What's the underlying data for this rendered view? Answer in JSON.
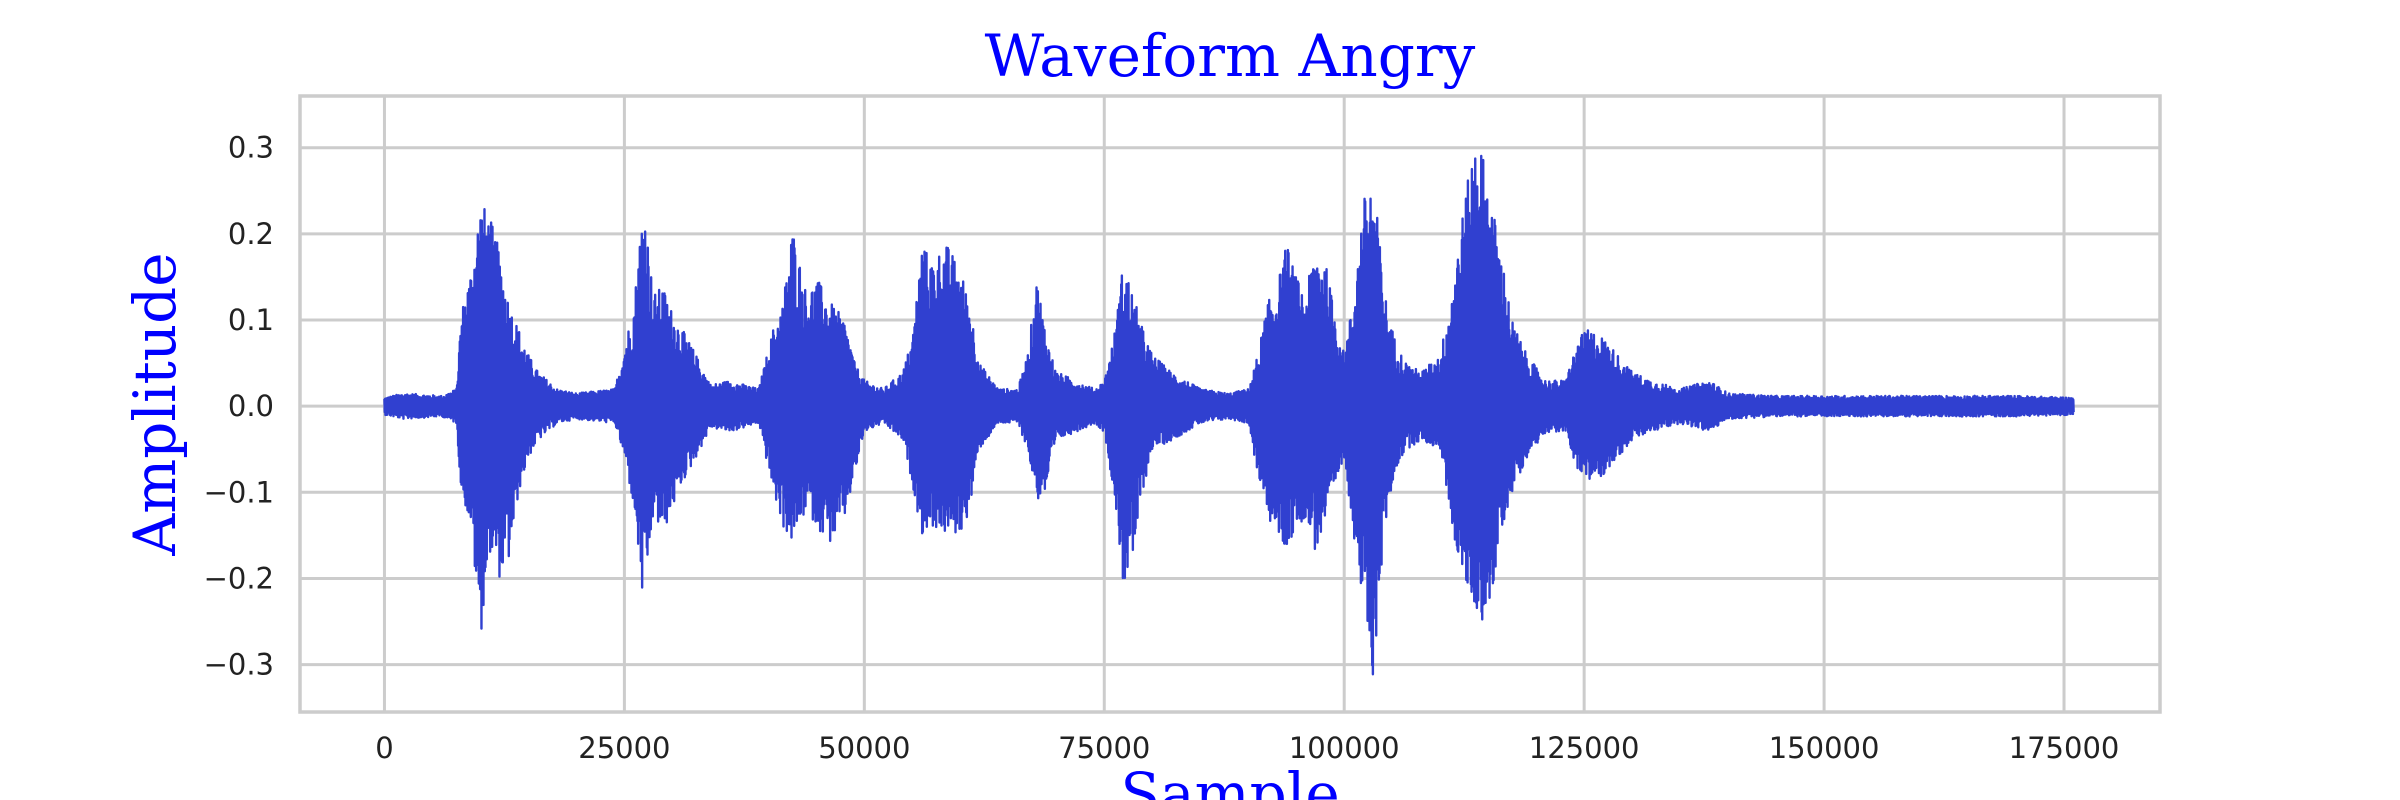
{
  "chart_data": {
    "type": "line",
    "title": "Waveform Angry",
    "xlabel": "Sample",
    "ylabel": "Amplitude",
    "xlim": [
      -8800,
      185000
    ],
    "ylim": [
      -0.355,
      0.36
    ],
    "xticks": [
      0,
      25000,
      50000,
      75000,
      100000,
      125000,
      150000,
      175000
    ],
    "xtick_labels": [
      "0",
      "25000",
      "50000",
      "75000",
      "100000",
      "125000",
      "150000",
      "175000"
    ],
    "yticks": [
      0.3,
      0.2,
      0.1,
      0.0,
      -0.1,
      -0.2,
      -0.3
    ],
    "ytick_labels": [
      "0.3",
      "0.2",
      "0.1",
      "0.0",
      "−0.1",
      "−0.2",
      "−0.3"
    ],
    "grid": true,
    "series_color": "#3040d0",
    "total_samples": 176000,
    "envelope": {
      "x": [
        0,
        2000,
        6000,
        7500,
        8000,
        9000,
        10000,
        11000,
        12000,
        13000,
        14000,
        15000,
        16000,
        18000,
        20000,
        24000,
        25000,
        26000,
        27000,
        28000,
        29000,
        30000,
        31000,
        32000,
        34000,
        36000,
        39000,
        40500,
        41500,
        42500,
        44000,
        45000,
        46500,
        48000,
        49000,
        50000,
        52000,
        54000,
        55000,
        56000,
        57000,
        58500,
        60000,
        61000,
        62000,
        64000,
        66000,
        67000,
        68000,
        69000,
        70000,
        72000,
        74000,
        75000,
        76000,
        77000,
        78000,
        79000,
        80000,
        82000,
        85000,
        88000,
        90000,
        91000,
        92000,
        93000,
        94000,
        95000,
        96000,
        97000,
        98000,
        99000,
        100000,
        101000,
        102000,
        103000,
        103800,
        104500,
        105500,
        106500,
        108000,
        110000,
        111000,
        112000,
        113000,
        113800,
        114500,
        115500,
        116500,
        117500,
        119000,
        121000,
        123000,
        124500,
        125500,
        127000,
        128500,
        130000,
        132000,
        135000,
        138000,
        140000,
        145000,
        150000,
        160000,
        170000,
        176000
      ],
      "upper": [
        0.01,
        0.015,
        0.012,
        0.02,
        0.11,
        0.16,
        0.24,
        0.22,
        0.18,
        0.12,
        0.09,
        0.06,
        0.04,
        0.02,
        0.015,
        0.02,
        0.07,
        0.12,
        0.25,
        0.13,
        0.14,
        0.11,
        0.09,
        0.07,
        0.025,
        0.03,
        0.02,
        0.09,
        0.12,
        0.21,
        0.13,
        0.15,
        0.12,
        0.1,
        0.05,
        0.03,
        0.02,
        0.04,
        0.08,
        0.19,
        0.17,
        0.19,
        0.16,
        0.12,
        0.05,
        0.02,
        0.02,
        0.06,
        0.15,
        0.08,
        0.04,
        0.03,
        0.02,
        0.03,
        0.08,
        0.17,
        0.13,
        0.09,
        0.06,
        0.04,
        0.02,
        0.015,
        0.02,
        0.06,
        0.12,
        0.14,
        0.19,
        0.15,
        0.13,
        0.19,
        0.17,
        0.11,
        0.06,
        0.13,
        0.24,
        0.27,
        0.18,
        0.11,
        0.07,
        0.05,
        0.04,
        0.06,
        0.12,
        0.2,
        0.27,
        0.33,
        0.29,
        0.23,
        0.17,
        0.1,
        0.06,
        0.03,
        0.03,
        0.08,
        0.09,
        0.08,
        0.06,
        0.04,
        0.03,
        0.02,
        0.03,
        0.015,
        0.012,
        0.012,
        0.012,
        0.012,
        0.01
      ],
      "lower": [
        -0.01,
        -0.015,
        -0.012,
        -0.02,
        -0.1,
        -0.14,
        -0.27,
        -0.17,
        -0.2,
        -0.18,
        -0.1,
        -0.06,
        -0.04,
        -0.02,
        -0.015,
        -0.02,
        -0.06,
        -0.12,
        -0.24,
        -0.13,
        -0.15,
        -0.12,
        -0.09,
        -0.07,
        -0.025,
        -0.03,
        -0.02,
        -0.1,
        -0.14,
        -0.16,
        -0.12,
        -0.14,
        -0.16,
        -0.13,
        -0.08,
        -0.03,
        -0.02,
        -0.04,
        -0.09,
        -0.15,
        -0.14,
        -0.15,
        -0.15,
        -0.12,
        -0.05,
        -0.02,
        -0.02,
        -0.05,
        -0.11,
        -0.1,
        -0.04,
        -0.03,
        -0.02,
        -0.03,
        -0.1,
        -0.21,
        -0.18,
        -0.1,
        -0.05,
        -0.04,
        -0.02,
        -0.015,
        -0.02,
        -0.08,
        -0.13,
        -0.15,
        -0.17,
        -0.14,
        -0.13,
        -0.17,
        -0.14,
        -0.1,
        -0.06,
        -0.15,
        -0.24,
        -0.32,
        -0.2,
        -0.12,
        -0.07,
        -0.05,
        -0.04,
        -0.05,
        -0.12,
        -0.19,
        -0.22,
        -0.24,
        -0.25,
        -0.22,
        -0.14,
        -0.1,
        -0.06,
        -0.03,
        -0.03,
        -0.08,
        -0.09,
        -0.08,
        -0.06,
        -0.04,
        -0.03,
        -0.02,
        -0.03,
        -0.015,
        -0.012,
        -0.012,
        -0.012,
        -0.012,
        -0.01
      ]
    }
  }
}
